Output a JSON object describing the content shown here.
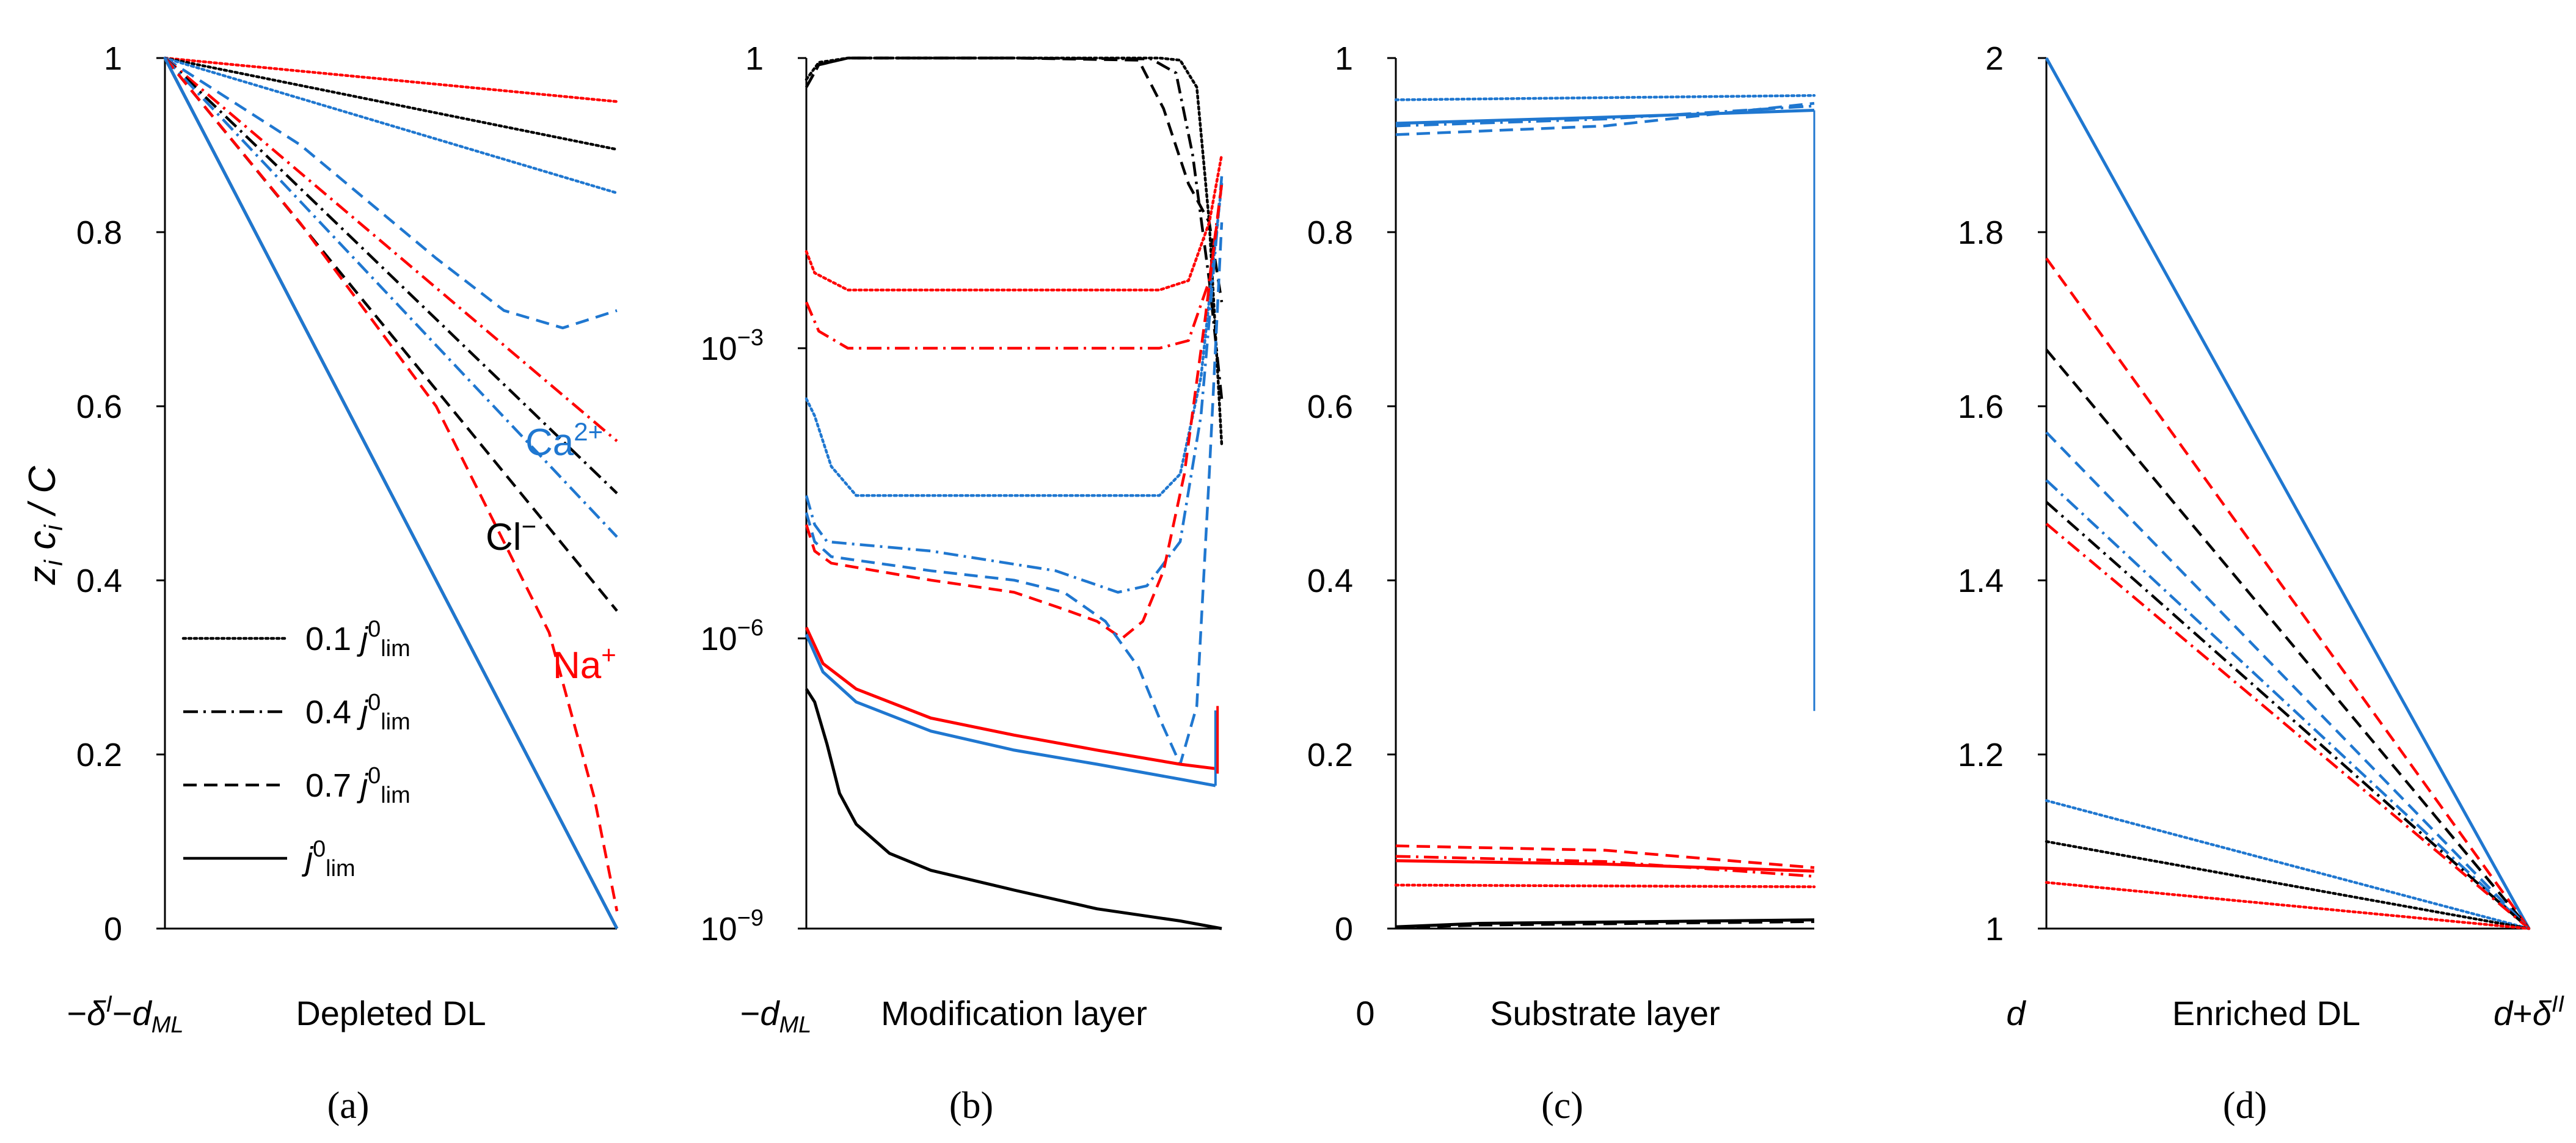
{
  "colors": {
    "black": "#000000",
    "red": "#ff0000",
    "blue": "#1f77d0"
  },
  "labels": {
    "ylabel_main": "z",
    "ylabel_sub1": "i",
    "ylabel_mid": " c",
    "ylabel_sub2": "i",
    "ylabel_tail": " / C"
  },
  "legend": [
    {
      "style": "dotted",
      "pre": "0.1 ",
      "sym": "j",
      "sup": "0",
      "sub": "lim"
    },
    {
      "style": "dashdot",
      "pre": "0.4 ",
      "sym": "j",
      "sup": "0",
      "sub": "lim"
    },
    {
      "style": "dashed",
      "pre": "0.7 ",
      "sym": "j",
      "sup": "0",
      "sub": "lim"
    },
    {
      "style": "solid",
      "pre": "",
      "sym": "j",
      "sup": "0",
      "sub": "lim"
    }
  ],
  "annotations": [
    {
      "id": "ca",
      "text": "Ca",
      "sup": "2+",
      "color": "#1f77d0"
    },
    {
      "id": "cl",
      "text": "Cl",
      "sup": "−",
      "color": "#000000"
    },
    {
      "id": "na",
      "text": "Na",
      "sup": "+",
      "color": "#ff0000"
    }
  ],
  "chart_data": [
    {
      "panel": "(a)",
      "type": "line",
      "title": "",
      "xlabel": "Depleted DL",
      "ylabel": "z_i c_i / C",
      "x_left_label": "−δ^I−d_ML",
      "ylim": [
        0,
        1
      ],
      "yscale": "linear",
      "yticks": [
        "0",
        "0.2",
        "0.4",
        "0.6",
        "0.8",
        "1"
      ],
      "xlim": [
        0,
        1
      ],
      "series": [
        {
          "name": "Na+ 0.1 j0lim",
          "color": "red",
          "style": "dotted",
          "x": [
            0,
            1
          ],
          "y": [
            1,
            0.95
          ]
        },
        {
          "name": "Cl- 0.1 j0lim",
          "color": "black",
          "style": "dotted",
          "x": [
            0,
            1
          ],
          "y": [
            1,
            0.895
          ]
        },
        {
          "name": "Ca2+ 0.1 j0lim",
          "color": "blue",
          "style": "dotted",
          "x": [
            0,
            1
          ],
          "y": [
            1,
            0.845
          ]
        },
        {
          "name": "Ca2+ 0.7 j0lim",
          "color": "blue",
          "style": "dashed",
          "x": [
            0,
            0.3,
            0.6,
            0.75,
            0.88,
            1
          ],
          "y": [
            1,
            0.9,
            0.77,
            0.71,
            0.69,
            0.71
          ]
        },
        {
          "name": "Na+ 0.4 j0lim",
          "color": "red",
          "style": "dashdot",
          "x": [
            0,
            1
          ],
          "y": [
            1,
            0.56
          ]
        },
        {
          "name": "Cl- 0.4 j0lim",
          "color": "black",
          "style": "dashdot",
          "x": [
            0,
            1
          ],
          "y": [
            1,
            0.5
          ]
        },
        {
          "name": "Ca2+ 0.4 j0lim",
          "color": "blue",
          "style": "dashdot",
          "x": [
            0,
            1
          ],
          "y": [
            1,
            0.45
          ]
        },
        {
          "name": "Cl- 0.7 j0lim",
          "color": "black",
          "style": "dashed",
          "x": [
            0,
            1
          ],
          "y": [
            1,
            0.365
          ]
        },
        {
          "name": "Na+ 0.7 j0lim",
          "color": "red",
          "style": "dashed",
          "x": [
            0,
            0.3,
            0.6,
            0.85,
            0.95,
            1
          ],
          "y": [
            1,
            0.81,
            0.6,
            0.34,
            0.15,
            0.02
          ]
        },
        {
          "name": "Cl- j0lim",
          "color": "black",
          "style": "solid",
          "x": [
            0,
            1
          ],
          "y": [
            1,
            0
          ]
        },
        {
          "name": "Ca2+ j0lim",
          "color": "blue",
          "style": "solid",
          "x": [
            0,
            1
          ],
          "y": [
            1,
            0
          ]
        }
      ]
    },
    {
      "panel": "(b)",
      "type": "line",
      "title": "",
      "xlabel": "Modification layer",
      "ylabel": "",
      "x_left_label": "−d_ML",
      "ylim": [
        1e-09,
        1
      ],
      "yscale": "log",
      "yticks": [
        "10^-9",
        "10^-6",
        "10^-3",
        "1"
      ],
      "xlim": [
        0,
        1
      ],
      "series": [
        {
          "name": "Cl- 0.1 j0lim",
          "color": "black",
          "style": "dotted",
          "x": [
            0,
            0.03,
            0.1,
            0.5,
            0.85,
            0.9,
            0.94,
            0.97,
            1
          ],
          "y": [
            0.6,
            0.9,
            1,
            1,
            1,
            0.95,
            0.5,
            0.02,
            0.0001
          ]
        },
        {
          "name": "Cl- 0.4 j0lim",
          "color": "black",
          "style": "dashdot",
          "x": [
            0,
            0.03,
            0.1,
            0.5,
            0.83,
            0.89,
            0.93,
            0.97,
            1
          ],
          "y": [
            0.5,
            0.85,
            1,
            1,
            0.98,
            0.7,
            0.1,
            0.005,
            0.0003
          ]
        },
        {
          "name": "Cl- 0.7 j0lim",
          "color": "black",
          "style": "dashed",
          "x": [
            0,
            0.03,
            0.1,
            0.5,
            0.8,
            0.86,
            0.92,
            0.97,
            1
          ],
          "y": [
            0.5,
            0.85,
            1,
            1,
            0.95,
            0.3,
            0.05,
            0.02,
            0.003
          ]
        },
        {
          "name": "Na+ 0.1 j0lim",
          "color": "red",
          "style": "dotted",
          "x": [
            0,
            0.02,
            0.1,
            0.85,
            0.92,
            0.97,
            1
          ],
          "y": [
            0.01,
            0.006,
            0.004,
            0.004,
            0.005,
            0.02,
            0.1
          ]
        },
        {
          "name": "Na+ 0.4 j0lim",
          "color": "red",
          "style": "dashdot",
          "x": [
            0,
            0.03,
            0.1,
            0.85,
            0.92,
            0.97,
            1
          ],
          "y": [
            0.003,
            0.0015,
            0.001,
            0.001,
            0.0012,
            0.005,
            0.05
          ]
        },
        {
          "name": "Ca2+ 0.1 j0lim",
          "color": "blue",
          "style": "dotted",
          "x": [
            0,
            0.02,
            0.06,
            0.12,
            0.85,
            0.9,
            0.95,
            1
          ],
          "y": [
            0.0003,
            0.0002,
            6e-05,
            3e-05,
            3e-05,
            5e-05,
            0.0005,
            0.05
          ]
        },
        {
          "name": "Ca2+ 0.4 j0lim",
          "color": "blue",
          "style": "dashdot",
          "x": [
            0,
            0.02,
            0.05,
            0.3,
            0.6,
            0.75,
            0.82,
            0.9,
            0.95,
            1
          ],
          "y": [
            3e-05,
            1.5e-05,
            1e-05,
            8e-06,
            5e-06,
            3e-06,
            3.5e-06,
            1e-05,
            0.0002,
            0.06
          ]
        },
        {
          "name": "Na+ 0.7 j0lim",
          "color": "red",
          "style": "dashed",
          "x": [
            0,
            0.02,
            0.06,
            0.3,
            0.5,
            0.62,
            0.7,
            0.76,
            0.81,
            0.86,
            0.91,
            0.96,
            1
          ],
          "y": [
            1.5e-05,
            8e-06,
            6e-06,
            4e-06,
            3e-06,
            2e-06,
            1.5e-06,
            1e-06,
            1.5e-06,
            5e-06,
            5e-05,
            0.002,
            0.05
          ]
        },
        {
          "name": "Ca2+ 0.7 j0lim",
          "color": "blue",
          "style": "dashed",
          "x": [
            0,
            0.02,
            0.06,
            0.3,
            0.5,
            0.62,
            0.72,
            0.8,
            0.85,
            0.9,
            0.94,
            0.97,
            1
          ],
          "y": [
            2e-05,
            1e-05,
            7e-06,
            5e-06,
            4e-06,
            3e-06,
            1.5e-06,
            5e-07,
            1.5e-07,
            5e-08,
            2e-07,
            5e-05,
            0.02
          ]
        },
        {
          "name": "Na+ j0lim",
          "color": "red",
          "style": "solid",
          "x": [
            0,
            0.04,
            0.12,
            0.3,
            0.5,
            0.7,
            0.9,
            0.985
          ],
          "y": [
            1.3e-06,
            5.5e-07,
            3e-07,
            1.5e-07,
            1e-07,
            7e-08,
            5e-08,
            4.5e-08
          ]
        },
        {
          "name": "Ca2+ j0lim",
          "color": "blue",
          "style": "solid",
          "x": [
            0,
            0.04,
            0.12,
            0.3,
            0.5,
            0.7,
            0.9,
            0.985
          ],
          "y": [
            1.1e-06,
            4.5e-07,
            2.2e-07,
            1.1e-07,
            7e-08,
            5e-08,
            3.5e-08,
            3e-08
          ]
        },
        {
          "name": "Cl- j0lim",
          "color": "black",
          "style": "solid",
          "x": [
            0,
            0.02,
            0.05,
            0.08,
            0.12,
            0.2,
            0.3,
            0.5,
            0.7,
            0.9,
            1
          ],
          "y": [
            3e-07,
            2.2e-07,
            8e-08,
            2.5e-08,
            1.2e-08,
            6e-09,
            4e-09,
            2.5e-09,
            1.6e-09,
            1.2e-09,
            1e-09
          ]
        }
      ]
    },
    {
      "panel": "(c)",
      "type": "line",
      "title": "",
      "xlabel": "Substrate layer",
      "ylabel": "",
      "x_left_label": "0",
      "ylim": [
        0,
        1
      ],
      "yscale": "linear",
      "yticks": [
        "0",
        "0.2",
        "0.4",
        "0.6",
        "0.8",
        "1"
      ],
      "xlim": [
        0,
        1
      ],
      "series": [
        {
          "name": "Ca2+ 0.1 j0lim",
          "color": "blue",
          "style": "dotted",
          "x": [
            0,
            1
          ],
          "y": [
            0.952,
            0.957
          ]
        },
        {
          "name": "Ca2+ j0lim",
          "color": "blue",
          "style": "solid",
          "x": [
            0,
            0.5,
            1
          ],
          "y": [
            0.925,
            0.932,
            0.94
          ]
        },
        {
          "name": "Ca2+ 0.4 j0lim",
          "color": "blue",
          "style": "dashdot",
          "x": [
            0,
            0.5,
            1
          ],
          "y": [
            0.922,
            0.93,
            0.945
          ]
        },
        {
          "name": "Ca2+ 0.7 j0lim",
          "color": "blue",
          "style": "dashed",
          "x": [
            0,
            0.5,
            1
          ],
          "y": [
            0.912,
            0.922,
            0.948
          ]
        },
        {
          "name": "Na+ 0.7 j0lim",
          "color": "red",
          "style": "dashed",
          "x": [
            0,
            0.5,
            1
          ],
          "y": [
            0.095,
            0.09,
            0.07
          ]
        },
        {
          "name": "Na+ j0lim",
          "color": "red",
          "style": "solid",
          "x": [
            0,
            0.5,
            1
          ],
          "y": [
            0.078,
            0.074,
            0.066
          ]
        },
        {
          "name": "Na+ 0.4 j0lim",
          "color": "red",
          "style": "dashdot",
          "x": [
            0,
            0.5,
            1
          ],
          "y": [
            0.083,
            0.077,
            0.06
          ]
        },
        {
          "name": "Na+ 0.1 j0lim",
          "color": "red",
          "style": "dotted",
          "x": [
            0,
            1
          ],
          "y": [
            0.05,
            0.048
          ]
        },
        {
          "name": "Cl- j0lim",
          "color": "black",
          "style": "solid",
          "x": [
            0,
            0.2,
            1
          ],
          "y": [
            0.002,
            0.006,
            0.01
          ]
        },
        {
          "name": "Cl- 0.7 j0lim",
          "color": "black",
          "style": "dashed",
          "x": [
            0,
            0.2,
            1
          ],
          "y": [
            0.001,
            0.004,
            0.008
          ]
        }
      ]
    },
    {
      "panel": "(d)",
      "type": "line",
      "title": "",
      "xlabel": "Enriched DL",
      "ylabel": "",
      "x_left_label": "d",
      "x_right_label": "d+δ^II",
      "ylim": [
        1,
        2
      ],
      "yscale": "linear",
      "yticks": [
        "1",
        "1.2",
        "1.4",
        "1.6",
        "1.8",
        "2"
      ],
      "xlim": [
        0,
        1
      ],
      "series": [
        {
          "name": "Ca2+ j0lim",
          "color": "blue",
          "style": "solid",
          "x": [
            0,
            1
          ],
          "y": [
            2.0,
            1.0
          ]
        },
        {
          "name": "Na+ 0.7 j0lim",
          "color": "red",
          "style": "dashed",
          "x": [
            0,
            1
          ],
          "y": [
            1.77,
            1.0
          ]
        },
        {
          "name": "Cl- 0.7 j0lim",
          "color": "black",
          "style": "dashed",
          "x": [
            0,
            1
          ],
          "y": [
            1.665,
            1.0
          ]
        },
        {
          "name": "Ca2+ 0.7 j0lim",
          "color": "blue",
          "style": "dashed",
          "x": [
            0,
            1
          ],
          "y": [
            1.57,
            1.0
          ]
        },
        {
          "name": "Ca2+ 0.4 j0lim",
          "color": "blue",
          "style": "dashdot",
          "x": [
            0,
            1
          ],
          "y": [
            1.515,
            1.0
          ]
        },
        {
          "name": "Cl- 0.4 j0lim",
          "color": "black",
          "style": "dashdot",
          "x": [
            0,
            1
          ],
          "y": [
            1.49,
            1.0
          ]
        },
        {
          "name": "Na+ 0.4 j0lim",
          "color": "red",
          "style": "dashdot",
          "x": [
            0,
            1
          ],
          "y": [
            1.465,
            1.0
          ]
        },
        {
          "name": "Ca2+ 0.1 j0lim",
          "color": "blue",
          "style": "dotted",
          "x": [
            0,
            1
          ],
          "y": [
            1.147,
            1.0
          ]
        },
        {
          "name": "Cl- 0.1 j0lim",
          "color": "black",
          "style": "dotted",
          "x": [
            0,
            1
          ],
          "y": [
            1.1,
            1.0
          ]
        },
        {
          "name": "Na+ 0.1 j0lim",
          "color": "red",
          "style": "dotted",
          "x": [
            0,
            1
          ],
          "y": [
            1.053,
            1.0
          ]
        }
      ]
    }
  ]
}
